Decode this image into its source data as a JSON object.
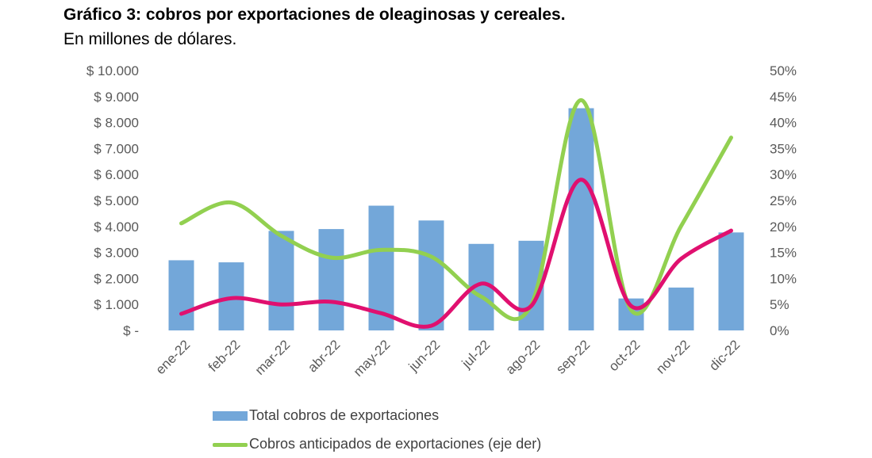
{
  "chart_data": {
    "type": "bar",
    "title": "Gráfico 3: cobros por exportaciones de oleaginosas y cereales.",
    "subtitle": "En millones de dólares.",
    "categories": [
      "ene-22",
      "feb-22",
      "mar-22",
      "abr-22",
      "may-22",
      "jun-22",
      "jul-22",
      "ago-22",
      "sep-22",
      "oct-22",
      "nov-22",
      "dic-22"
    ],
    "left_axis": {
      "ylim": [
        0,
        10000
      ],
      "tick_labels": [
        "$ -",
        "$ 1.000",
        "$ 2.000",
        "$ 3.000",
        "$ 4.000",
        "$ 5.000",
        "$ 6.000",
        "$ 7.000",
        "$ 8.000",
        "$ 9.000",
        "$ 10.000"
      ]
    },
    "right_axis": {
      "ylim": [
        0,
        50
      ],
      "tick_labels": [
        "0%",
        "5%",
        "10%",
        "15%",
        "20%",
        "25%",
        "30%",
        "35%",
        "40%",
        "45%",
        "50%"
      ]
    },
    "series": [
      {
        "name": "Total cobros de exportaciones",
        "type": "bar",
        "axis": "left",
        "color": "#73a7d9",
        "values": [
          2700,
          2620,
          3830,
          3900,
          4800,
          4230,
          3330,
          3450,
          8550,
          1230,
          1650,
          3770
        ]
      },
      {
        "name": "Cobros anticipados de exportaciones (eje der)",
        "type": "line",
        "axis": "right",
        "color": "#92d050",
        "values": [
          20.6,
          24.6,
          18.2,
          14.0,
          15.5,
          14.2,
          6.5,
          4.9,
          44.3,
          3.9,
          20.1,
          37.1
        ]
      },
      {
        "name": "",
        "type": "line",
        "axis": "right",
        "color": "#e0106f",
        "values": [
          3.2,
          6.2,
          5.0,
          5.5,
          3.3,
          0.9,
          9.0,
          4.7,
          29.0,
          4.7,
          13.8,
          19.2
        ]
      }
    ],
    "legend": {
      "position": "bottom",
      "entries": [
        "Total cobros de exportaciones",
        "Cobros anticipados de exportaciones (eje der)"
      ]
    },
    "grid": false
  }
}
